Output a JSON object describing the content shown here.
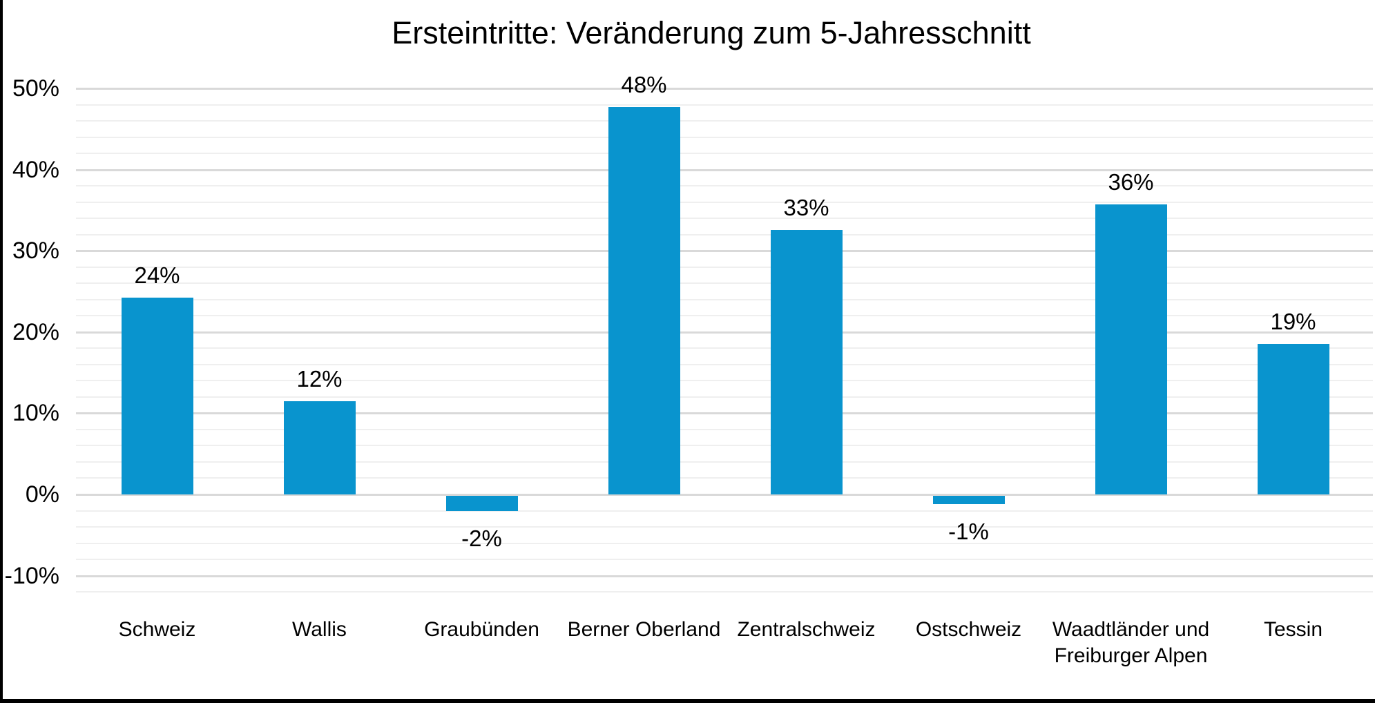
{
  "chart_data": {
    "type": "bar",
    "title": "Ersteintritte: Veränderung zum 5-Jahresschnitt",
    "categories": [
      "Schweiz",
      "Wallis",
      "Graubünden",
      "Berner Oberland",
      "Zentralschweiz",
      "Ostschweiz",
      "Waadtländer und Freiburger Alpen",
      "Tessin"
    ],
    "values": [
      24.2,
      11.5,
      -1.9,
      47.7,
      32.6,
      -1.0,
      35.7,
      18.5
    ],
    "data_labels": [
      "24%",
      "12%",
      "-2%",
      "48%",
      "33%",
      "-1%",
      "36%",
      "19%"
    ],
    "xlabel": "",
    "ylabel": "",
    "y_axis": {
      "tick_values": [
        50,
        40,
        30,
        20,
        10,
        0,
        -10
      ],
      "tick_labels": [
        "50%",
        "40%",
        "30%",
        "20%",
        "10%",
        "0%",
        "-10%"
      ],
      "max": 50,
      "min": -12,
      "major_step": 10,
      "minor_step": 2
    },
    "grid": true,
    "legend": false,
    "bar_color": "#0994CE",
    "major_grid_color": "#D9D9D9",
    "minor_grid_color": "#EFEFEF",
    "text_color": "#000000",
    "background_color": "#FFFFFF"
  },
  "frame": {
    "left_edge_color": "#000000",
    "bottom_edge_color": "#000000"
  }
}
